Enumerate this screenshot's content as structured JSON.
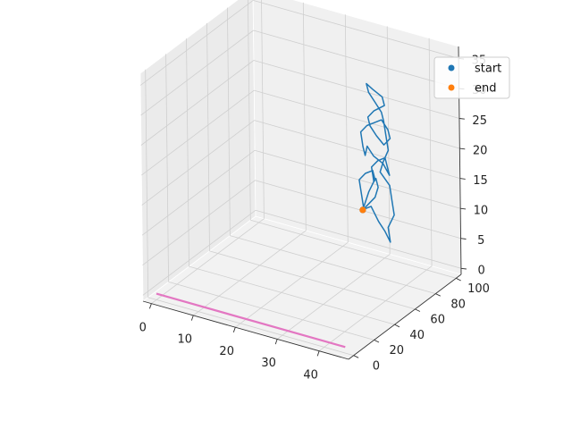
{
  "chart_data": {
    "type": "line3d",
    "axes": {
      "x": {
        "lim": [
          -2,
          47
        ],
        "ticks": [
          0,
          10,
          20,
          30,
          40
        ],
        "labels": [
          "0",
          "10",
          "20",
          "30",
          "40"
        ],
        "label": ""
      },
      "y": {
        "lim": [
          -5,
          105
        ],
        "ticks": [
          0,
          20,
          40,
          60,
          80,
          100
        ],
        "labels": [
          "0",
          "20",
          "40",
          "60",
          "80",
          "100"
        ],
        "label": ""
      },
      "z": {
        "lim": [
          -1,
          37
        ],
        "ticks": [
          0,
          5,
          10,
          15,
          20,
          25,
          30,
          35
        ],
        "labels": [
          "0",
          "5",
          "10",
          "15",
          "20",
          "25",
          "30",
          "35"
        ],
        "label": ""
      }
    },
    "grid": true,
    "legend": {
      "placement": "top-right",
      "entries": [
        {
          "label": "start",
          "color": "#1f77b4",
          "marker": "circle"
        },
        {
          "label": "end",
          "color": "#ff7f0e",
          "marker": "circle"
        }
      ]
    },
    "series": [
      {
        "kind": "line",
        "color": "#1f77b4",
        "points": [
          [
            36,
            55,
            14
          ],
          [
            37,
            57,
            15
          ],
          [
            38,
            59,
            16
          ],
          [
            39,
            58,
            18
          ],
          [
            38,
            60,
            19
          ],
          [
            37,
            62,
            18
          ],
          [
            36,
            64,
            20
          ],
          [
            37,
            66,
            21
          ],
          [
            39,
            65,
            22
          ],
          [
            40,
            63,
            21
          ],
          [
            41,
            61,
            20
          ],
          [
            40,
            59,
            22
          ],
          [
            38,
            58,
            23
          ],
          [
            36,
            60,
            24
          ],
          [
            35,
            62,
            22
          ],
          [
            34,
            64,
            23
          ],
          [
            33,
            66,
            25
          ],
          [
            34,
            68,
            26
          ],
          [
            36,
            67,
            27
          ],
          [
            38,
            66,
            28
          ],
          [
            40,
            64,
            27
          ],
          [
            41,
            62,
            26
          ],
          [
            40,
            60,
            25
          ],
          [
            38,
            61,
            26
          ],
          [
            36,
            63,
            27
          ],
          [
            35,
            65,
            28
          ],
          [
            36,
            67,
            29
          ],
          [
            38,
            69,
            30
          ],
          [
            37,
            71,
            31
          ],
          [
            35,
            70,
            32
          ],
          [
            34,
            68,
            33
          ],
          [
            35,
            66,
            32
          ],
          [
            37,
            64,
            31
          ],
          [
            39,
            62,
            30
          ],
          [
            40,
            60,
            29
          ],
          [
            41,
            58,
            27
          ],
          [
            42,
            56,
            25
          ],
          [
            41,
            55,
            23
          ],
          [
            40,
            56,
            21
          ],
          [
            42,
            57,
            19
          ],
          [
            43,
            55,
            17
          ],
          [
            44,
            53,
            15
          ],
          [
            43,
            51,
            13
          ],
          [
            44,
            49,
            11
          ],
          [
            42,
            52,
            12
          ],
          [
            40,
            54,
            13
          ],
          [
            38,
            55,
            15
          ],
          [
            36,
            56,
            14
          ],
          [
            35,
            58,
            16
          ],
          [
            34,
            60,
            18
          ],
          [
            35,
            62,
            19
          ],
          [
            37,
            61,
            20
          ],
          [
            38,
            59,
            19
          ],
          [
            37,
            57,
            17
          ],
          [
            36,
            55,
            14
          ]
        ]
      },
      {
        "kind": "line",
        "color": "#e377c2",
        "points": [
          [
            0,
            0,
            0
          ],
          [
            45,
            0,
            0
          ]
        ]
      },
      {
        "kind": "scatter",
        "name": "start",
        "color": "#1f77b4",
        "points": [
          [
            36,
            55,
            14
          ]
        ]
      },
      {
        "kind": "scatter",
        "name": "end",
        "color": "#ff7f0e",
        "points": [
          [
            36,
            55,
            14
          ]
        ]
      }
    ]
  }
}
